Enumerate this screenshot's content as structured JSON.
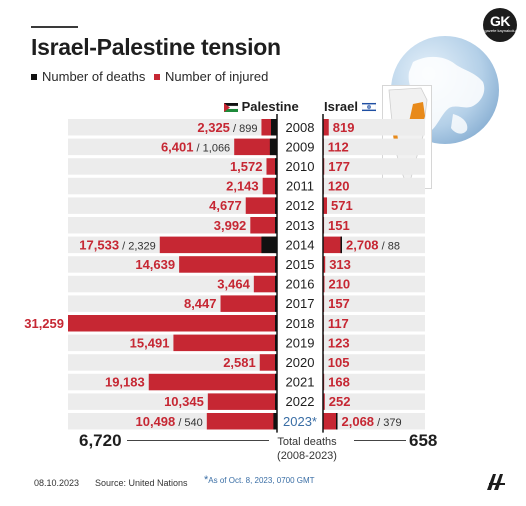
{
  "title": "Israel-Palestine tension",
  "legend": {
    "deaths": "Number of deaths",
    "injured": "Number of injured"
  },
  "logo_text": "GK",
  "logo_subtext": "gazete kaynakolu",
  "columns": {
    "palestine": "Palestine",
    "israel": "Israel"
  },
  "colors": {
    "deaths": "#111111",
    "injured": "#c62733",
    "row_background": "#ececec",
    "footnote": "#3a6ea5"
  },
  "chart_data": {
    "type": "bar",
    "categories": [
      "2008",
      "2009",
      "2010",
      "2011",
      "2012",
      "2013",
      "2014",
      "2015",
      "2016",
      "2017",
      "2018",
      "2019",
      "2020",
      "2021",
      "2022",
      "2023*"
    ],
    "series": [
      {
        "name": "Palestine - Number of injured",
        "values": [
          2325,
          6401,
          1572,
          2143,
          4677,
          3992,
          17533,
          14639,
          3464,
          8447,
          31259,
          15491,
          2581,
          19183,
          10345,
          10498
        ]
      },
      {
        "name": "Palestine - Number of deaths",
        "values": [
          899,
          1066,
          null,
          null,
          null,
          null,
          2329,
          null,
          null,
          null,
          null,
          null,
          null,
          null,
          null,
          540
        ]
      },
      {
        "name": "Israel - Number of injured",
        "values": [
          819,
          112,
          177,
          120,
          571,
          151,
          2708,
          313,
          210,
          157,
          117,
          123,
          105,
          168,
          252,
          2068
        ]
      },
      {
        "name": "Israel - Number of deaths",
        "values": [
          null,
          null,
          null,
          null,
          null,
          null,
          88,
          null,
          null,
          null,
          null,
          null,
          null,
          null,
          null,
          379
        ]
      }
    ],
    "labels": {
      "palestine": [
        "2,325",
        "6,401",
        "1,572",
        "2,143",
        "4,677",
        "3,992",
        "17,533",
        "14,639",
        "3,464",
        "8,447",
        "31,259",
        "15,491",
        "2,581",
        "19,183",
        "10,345",
        "10,498"
      ],
      "palestine_deaths": [
        "899",
        "1,066",
        "",
        "",
        "",
        "",
        "2,329",
        "",
        "",
        "",
        "",
        "",
        "",
        "",
        "",
        "540"
      ],
      "israel": [
        "819",
        "112",
        "177",
        "120",
        "571",
        "151",
        "2,708",
        "313",
        "210",
        "157",
        "117",
        "123",
        "105",
        "168",
        "252",
        "2,068"
      ],
      "israel_deaths": [
        "",
        "",
        "",
        "",
        "",
        "",
        "88",
        "",
        "",
        "",
        "",
        "",
        "",
        "",
        "",
        "379"
      ]
    },
    "highlight_category": "2023*"
  },
  "totals": {
    "palestine": "6,720",
    "israel": "658",
    "label_line1": "Total deaths",
    "label_line2": "(2008-2023)"
  },
  "footer": {
    "date": "08.10.2023",
    "source": "Source: United Nations",
    "footnote_star": "*",
    "footnote": "As of Oct. 8, 2023, 0700 GMT"
  }
}
